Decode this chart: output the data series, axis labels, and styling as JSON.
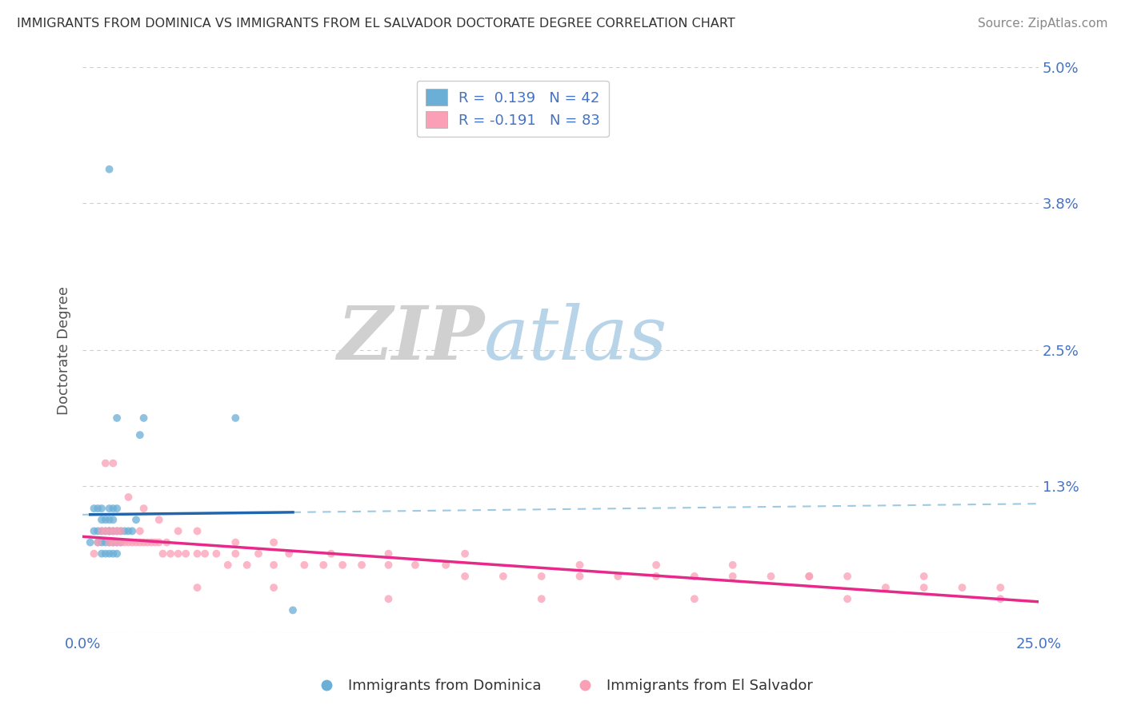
{
  "title": "IMMIGRANTS FROM DOMINICA VS IMMIGRANTS FROM EL SALVADOR DOCTORATE DEGREE CORRELATION CHART",
  "source": "Source: ZipAtlas.com",
  "ylabel": "Doctorate Degree",
  "xlim": [
    0,
    0.25
  ],
  "ylim": [
    0,
    0.05
  ],
  "xticks": [
    0.0,
    0.25
  ],
  "xticklabels": [
    "0.0%",
    "25.0%"
  ],
  "yticks": [
    0.0,
    0.013,
    0.025,
    0.038,
    0.05
  ],
  "yticklabels": [
    "",
    "1.3%",
    "2.5%",
    "3.8%",
    "5.0%"
  ],
  "legend1_label": "R =  0.139   N = 42",
  "legend2_label": "R = -0.191   N = 83",
  "bottom_legend1": "Immigrants from Dominica",
  "bottom_legend2": "Immigrants from El Salvador",
  "blue_color": "#6baed6",
  "pink_color": "#fa9fb5",
  "blue_line_color": "#2166ac",
  "pink_line_color": "#e7298a",
  "blue_dash_color": "#9ecae1",
  "grid_color": "#cccccc",
  "axis_color": "#4472c4",
  "figsize": [
    14.06,
    8.92
  ],
  "dpi": 100,
  "blue_x": [
    0.002,
    0.003,
    0.003,
    0.004,
    0.004,
    0.004,
    0.005,
    0.005,
    0.005,
    0.005,
    0.005,
    0.006,
    0.006,
    0.006,
    0.006,
    0.007,
    0.007,
    0.007,
    0.007,
    0.007,
    0.007,
    0.008,
    0.008,
    0.008,
    0.008,
    0.008,
    0.009,
    0.009,
    0.009,
    0.009,
    0.01,
    0.01,
    0.011,
    0.012,
    0.013,
    0.014,
    0.015,
    0.016,
    0.04,
    0.055,
    0.007,
    0.009
  ],
  "blue_y": [
    0.008,
    0.009,
    0.011,
    0.008,
    0.009,
    0.011,
    0.007,
    0.008,
    0.009,
    0.01,
    0.011,
    0.007,
    0.008,
    0.009,
    0.01,
    0.007,
    0.008,
    0.009,
    0.009,
    0.01,
    0.011,
    0.007,
    0.008,
    0.009,
    0.01,
    0.011,
    0.007,
    0.008,
    0.009,
    0.011,
    0.008,
    0.009,
    0.009,
    0.009,
    0.009,
    0.01,
    0.0175,
    0.019,
    0.019,
    0.002,
    0.041,
    0.019
  ],
  "pink_x": [
    0.003,
    0.004,
    0.005,
    0.006,
    0.006,
    0.007,
    0.007,
    0.008,
    0.008,
    0.009,
    0.009,
    0.01,
    0.01,
    0.011,
    0.012,
    0.013,
    0.014,
    0.015,
    0.015,
    0.016,
    0.017,
    0.018,
    0.019,
    0.02,
    0.021,
    0.022,
    0.023,
    0.025,
    0.027,
    0.03,
    0.032,
    0.035,
    0.038,
    0.04,
    0.043,
    0.046,
    0.05,
    0.054,
    0.058,
    0.063,
    0.068,
    0.073,
    0.08,
    0.087,
    0.095,
    0.1,
    0.11,
    0.12,
    0.13,
    0.14,
    0.15,
    0.16,
    0.17,
    0.18,
    0.19,
    0.2,
    0.21,
    0.22,
    0.23,
    0.24,
    0.008,
    0.012,
    0.016,
    0.02,
    0.025,
    0.03,
    0.04,
    0.05,
    0.065,
    0.08,
    0.1,
    0.13,
    0.15,
    0.17,
    0.19,
    0.22,
    0.03,
    0.05,
    0.08,
    0.12,
    0.16,
    0.2,
    0.24
  ],
  "pink_y": [
    0.007,
    0.008,
    0.009,
    0.009,
    0.015,
    0.008,
    0.009,
    0.008,
    0.009,
    0.008,
    0.009,
    0.008,
    0.009,
    0.008,
    0.008,
    0.008,
    0.008,
    0.009,
    0.008,
    0.008,
    0.008,
    0.008,
    0.008,
    0.008,
    0.007,
    0.008,
    0.007,
    0.007,
    0.007,
    0.007,
    0.007,
    0.007,
    0.006,
    0.007,
    0.006,
    0.007,
    0.006,
    0.007,
    0.006,
    0.006,
    0.006,
    0.006,
    0.006,
    0.006,
    0.006,
    0.005,
    0.005,
    0.005,
    0.005,
    0.005,
    0.005,
    0.005,
    0.005,
    0.005,
    0.005,
    0.005,
    0.004,
    0.004,
    0.004,
    0.004,
    0.015,
    0.012,
    0.011,
    0.01,
    0.009,
    0.009,
    0.008,
    0.008,
    0.007,
    0.007,
    0.007,
    0.006,
    0.006,
    0.006,
    0.005,
    0.005,
    0.004,
    0.004,
    0.003,
    0.003,
    0.003,
    0.003,
    0.003
  ]
}
